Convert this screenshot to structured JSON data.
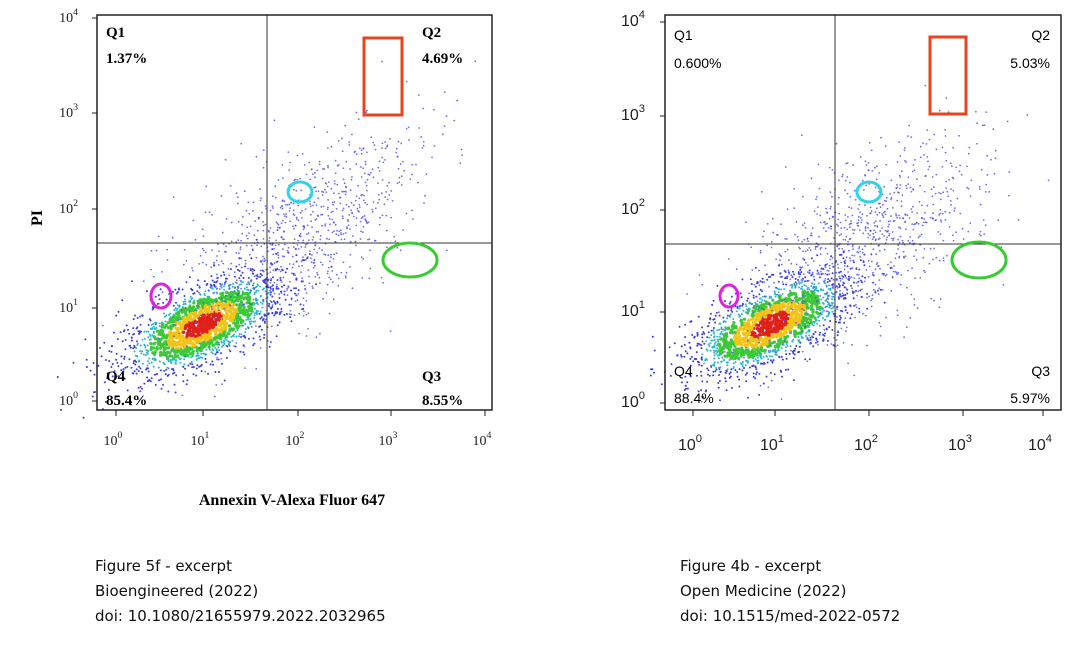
{
  "panels": [
    {
      "quadrants": [
        {
          "name": "Q1",
          "percent": "1.37%"
        },
        {
          "name": "Q2",
          "percent": "4.69%"
        },
        {
          "name": "Q3",
          "percent": "8.55%"
        },
        {
          "name": "Q4",
          "percent": "85.4%"
        }
      ],
      "ticks": [
        {
          "base": "10",
          "exp": "0"
        },
        {
          "base": "10",
          "exp": "1"
        },
        {
          "base": "10",
          "exp": "2"
        },
        {
          "base": "10",
          "exp": "3"
        },
        {
          "base": "10",
          "exp": "4"
        }
      ],
      "y_axis_label": "PI",
      "x_axis_label": "Annexin V-Alexa Fluor 647",
      "caption": [
        "Figure 5f - excerpt",
        "Bioengineered (2022)",
        "doi: 10.1080/21655979.2022.2032965"
      ]
    },
    {
      "quadrants": [
        {
          "name": "Q1",
          "percent": "0.600%"
        },
        {
          "name": "Q2",
          "percent": "5.03%"
        },
        {
          "name": "Q3",
          "percent": "5.97%"
        },
        {
          "name": "Q4",
          "percent": "88.4%"
        }
      ],
      "ticks": [
        {
          "base": "10",
          "exp": "0"
        },
        {
          "base": "10",
          "exp": "1"
        },
        {
          "base": "10",
          "exp": "2"
        },
        {
          "base": "10",
          "exp": "3"
        },
        {
          "base": "10",
          "exp": "4"
        }
      ],
      "caption": [
        "Figure 4b - excerpt",
        "Open Medicine (2022)",
        "doi: 10.1515/med-2022-0572"
      ]
    }
  ]
}
